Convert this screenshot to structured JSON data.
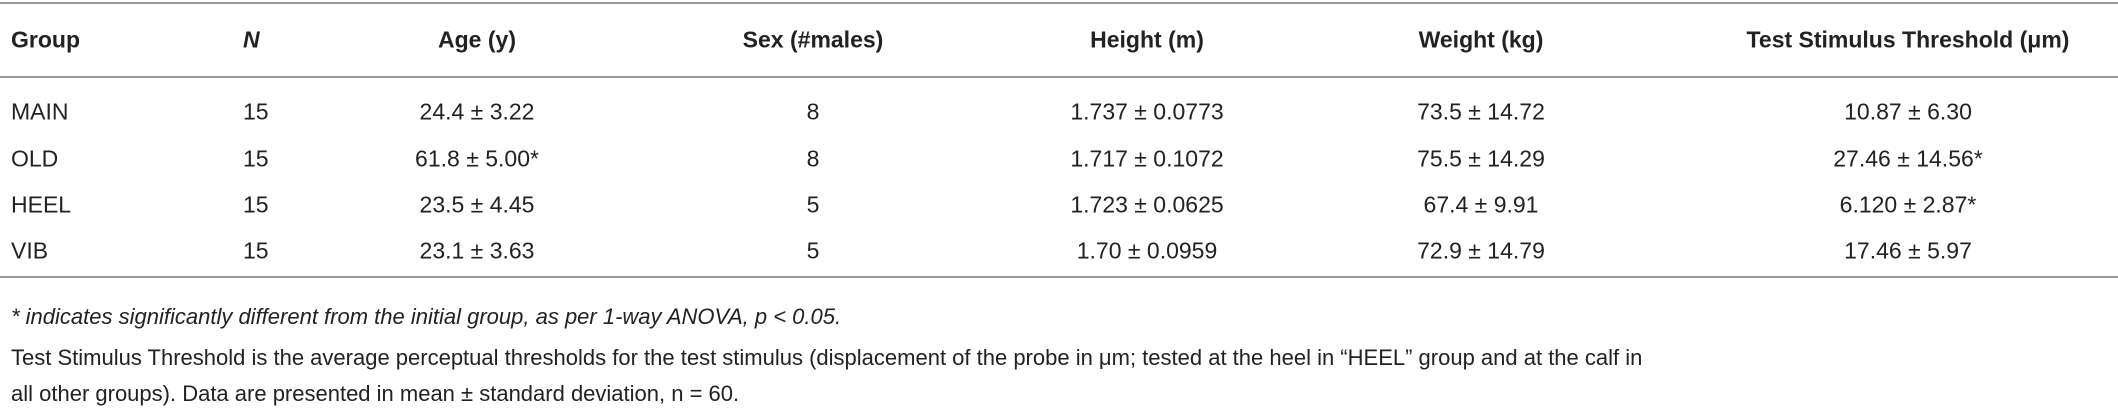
{
  "table": {
    "headers": [
      "Group",
      "N",
      "Age (y)",
      "Sex (#males)",
      "Height (m)",
      "Weight (kg)",
      "Test Stimulus Threshold (μm)"
    ],
    "rows": [
      [
        "MAIN",
        "15",
        "24.4 ± 3.22",
        "8",
        "1.737 ± 0.0773",
        "73.5 ± 14.72",
        "10.87 ± 6.30"
      ],
      [
        "OLD",
        "15",
        "61.8 ± 5.00*",
        "8",
        "1.717 ± 0.1072",
        "75.5 ± 14.29",
        "27.46 ± 14.56*"
      ],
      [
        "HEEL",
        "15",
        "23.5 ± 4.45",
        "5",
        "1.723 ± 0.0625",
        "67.4 ± 9.91",
        "6.120 ± 2.87*"
      ],
      [
        "VIB",
        "15",
        "23.1 ± 3.63",
        "5",
        "1.70 ± 0.0959",
        "72.9 ± 14.79",
        "17.46 ± 5.97"
      ]
    ]
  },
  "notes": [
    "* indicates significantly different from the initial group, as per 1-way ANOVA, p < 0.05.",
    "Test Stimulus Threshold is the average perceptual thresholds for the test stimulus (displacement of the probe in μm; tested at the heel in “HEEL” group and at the calf in",
    "all other groups). Data are presented in mean ± standard deviation, n = 60."
  ]
}
